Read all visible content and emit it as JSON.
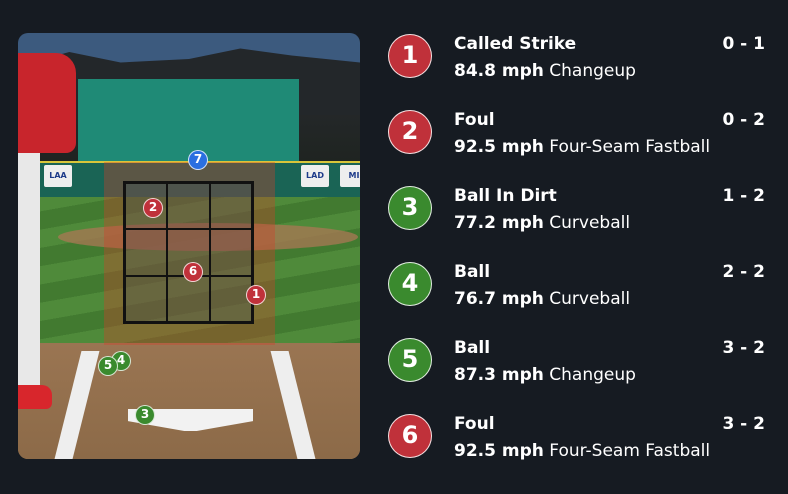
{
  "colors": {
    "background": "#161b22",
    "strike": "#c0313a",
    "ball": "#3a8a2e",
    "current": "#2a6fe0"
  },
  "scene": {
    "signs": [
      "LAA",
      "LAD",
      "MI"
    ]
  },
  "markers": [
    "1",
    "2",
    "3",
    "4",
    "5",
    "6",
    "7"
  ],
  "pitches": [
    {
      "number": "1",
      "result": "Called Strike",
      "count": "0 - 1",
      "speed": "84.8 mph",
      "type": "Changeup",
      "color": "red"
    },
    {
      "number": "2",
      "result": "Foul",
      "count": "0 - 2",
      "speed": "92.5 mph",
      "type": "Four-Seam Fastball",
      "color": "red"
    },
    {
      "number": "3",
      "result": "Ball In Dirt",
      "count": "1 - 2",
      "speed": "77.2 mph",
      "type": "Curveball",
      "color": "green"
    },
    {
      "number": "4",
      "result": "Ball",
      "count": "2 - 2",
      "speed": "76.7 mph",
      "type": "Curveball",
      "color": "green"
    },
    {
      "number": "5",
      "result": "Ball",
      "count": "3 - 2",
      "speed": "87.3 mph",
      "type": "Changeup",
      "color": "green"
    },
    {
      "number": "6",
      "result": "Foul",
      "count": "3 - 2",
      "speed": "92.5 mph",
      "type": "Four-Seam Fastball",
      "color": "red"
    }
  ]
}
